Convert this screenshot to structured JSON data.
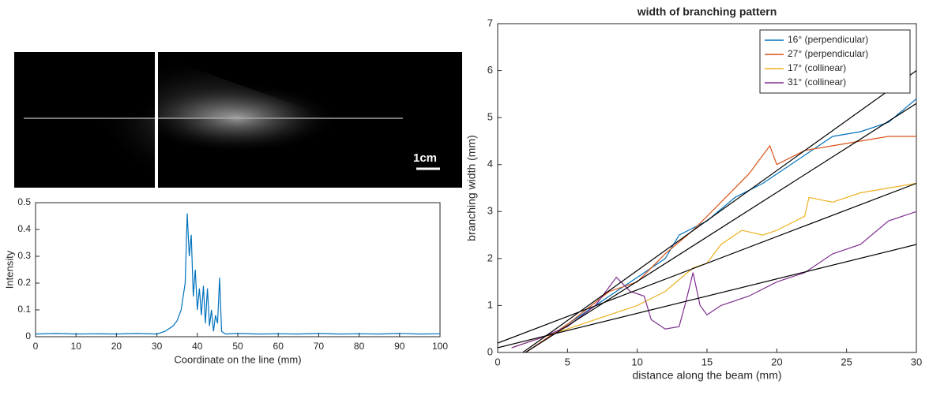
{
  "image": {
    "scale_label": "1cm"
  },
  "chart_data": [
    {
      "type": "line",
      "xlabel": "Coordinate on the line (mm)",
      "ylabel": "Intensity",
      "xlim": [
        0,
        100
      ],
      "ylim": [
        0,
        0.5
      ],
      "xticks": [
        0,
        10,
        20,
        30,
        40,
        50,
        60,
        70,
        80,
        90,
        100
      ],
      "yticks": [
        0,
        0.1,
        0.2,
        0.3,
        0.4,
        0.5
      ],
      "series": [
        {
          "color": "#0072bd",
          "x": [
            0,
            5,
            10,
            15,
            20,
            25,
            30,
            32,
            34,
            35,
            36,
            37,
            37.5,
            38,
            38.5,
            39,
            39.5,
            40,
            40.5,
            41,
            41.5,
            42,
            42.5,
            43,
            43.5,
            44,
            44.5,
            45,
            45.5,
            46,
            47,
            50,
            55,
            60,
            65,
            70,
            75,
            80,
            85,
            90,
            95,
            100
          ],
          "values": [
            0.01,
            0.012,
            0.01,
            0.011,
            0.01,
            0.012,
            0.01,
            0.02,
            0.04,
            0.06,
            0.1,
            0.2,
            0.46,
            0.3,
            0.38,
            0.15,
            0.25,
            0.1,
            0.18,
            0.08,
            0.19,
            0.05,
            0.18,
            0.04,
            0.1,
            0.02,
            0.08,
            0.05,
            0.22,
            0.02,
            0.01,
            0.012,
            0.01,
            0.011,
            0.01,
            0.012,
            0.01,
            0.011,
            0.01,
            0.012,
            0.01,
            0.011
          ]
        }
      ]
    },
    {
      "type": "line",
      "title": "width of branching pattern",
      "xlabel": "distance along the beam (mm)",
      "ylabel": "branching width (mm)",
      "xlim": [
        0,
        30
      ],
      "ylim": [
        0,
        7
      ],
      "xticks": [
        0,
        5,
        10,
        15,
        20,
        25,
        30
      ],
      "yticks": [
        0,
        1,
        2,
        3,
        4,
        5,
        6,
        7
      ],
      "legend": "upper-right",
      "series": [
        {
          "name": "16° (perpendicular)",
          "color": "#0072bd",
          "x": [
            2,
            5,
            8,
            10,
            12,
            13,
            15,
            17,
            19,
            20,
            22,
            24,
            26,
            28,
            30
          ],
          "values": [
            0,
            0.6,
            1.2,
            1.6,
            2.0,
            2.5,
            2.8,
            3.3,
            3.6,
            3.8,
            4.2,
            4.6,
            4.7,
            4.9,
            5.4
          ]
        },
        {
          "name": "27° (perpendicular)",
          "color": "#d95319",
          "x": [
            2,
            5,
            8,
            10,
            12,
            14,
            16,
            18,
            19.5,
            20,
            22,
            24,
            26,
            28,
            30
          ],
          "values": [
            0,
            0.6,
            1.3,
            1.5,
            2.1,
            2.6,
            3.2,
            3.8,
            4.4,
            4.0,
            4.3,
            4.4,
            4.5,
            4.6,
            4.6
          ]
        },
        {
          "name": "17° (collinear)",
          "color": "#edb120",
          "x": [
            1,
            3,
            5,
            8,
            10,
            12,
            14,
            15,
            16,
            17.5,
            19,
            20,
            22,
            22.3,
            24,
            26,
            28,
            30
          ],
          "values": [
            0.1,
            0.3,
            0.5,
            0.8,
            1.0,
            1.3,
            1.8,
            1.9,
            2.3,
            2.6,
            2.5,
            2.6,
            2.9,
            3.3,
            3.2,
            3.4,
            3.5,
            3.6
          ]
        },
        {
          "name": "31° (collinear)",
          "color": "#7e2f8e",
          "x": [
            1,
            3,
            5,
            7,
            8.5,
            9.5,
            10.5,
            11,
            12,
            13,
            13.5,
            14,
            14.5,
            15,
            16,
            18,
            20,
            22,
            24,
            26,
            28,
            30
          ],
          "values": [
            0.1,
            0.3,
            0.55,
            1.0,
            1.6,
            1.3,
            1.2,
            0.7,
            0.5,
            0.55,
            1.1,
            1.7,
            1.0,
            0.8,
            1.0,
            1.2,
            1.5,
            1.7,
            2.1,
            2.3,
            2.8,
            3.0
          ]
        }
      ],
      "fit_lines": [
        {
          "color": "#000000",
          "x": [
            1.8,
            30
          ],
          "values": [
            0,
            6.0
          ]
        },
        {
          "color": "#000000",
          "x": [
            2,
            30
          ],
          "values": [
            0,
            5.3
          ]
        },
        {
          "color": "#000000",
          "x": [
            0,
            30
          ],
          "values": [
            0.2,
            3.6
          ]
        },
        {
          "color": "#000000",
          "x": [
            0,
            30
          ],
          "values": [
            0.1,
            2.3
          ]
        }
      ]
    }
  ]
}
